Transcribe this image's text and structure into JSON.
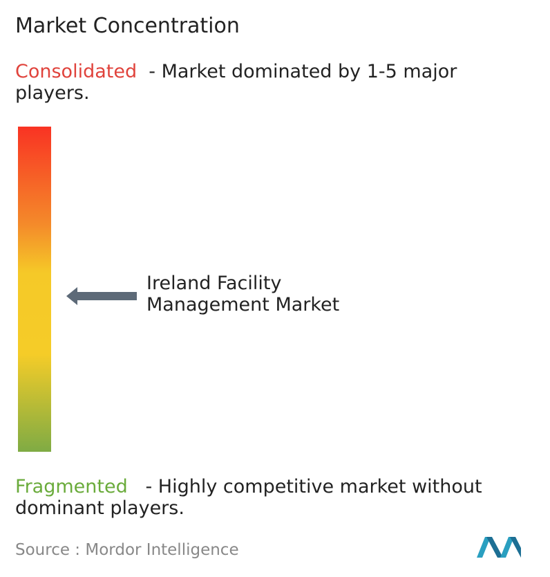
{
  "title": "Market Concentration",
  "consolidated": {
    "label": "Consolidated",
    "description": "- Market dominated by 1-5 major players."
  },
  "pointer": {
    "label": "Ireland Facility Management Market"
  },
  "fragmented": {
    "label": "Fragmented",
    "description": "- Highly competitive market without dominant players."
  },
  "source": {
    "label": "Source :",
    "name": "Mordor Intelligence"
  }
}
